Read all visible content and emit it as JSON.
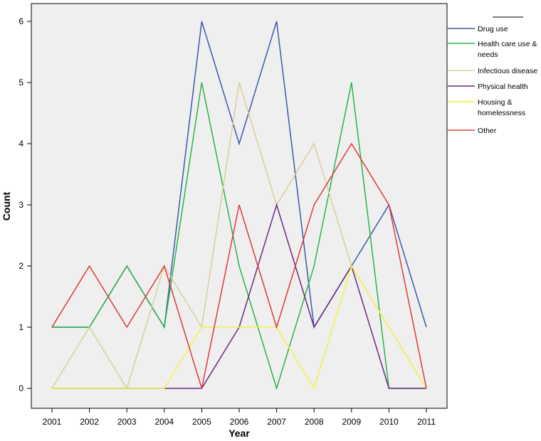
{
  "chart_data": {
    "type": "line",
    "xlabel": "Year",
    "ylabel": "Count",
    "x": [
      "2001",
      "2002",
      "2003",
      "2004",
      "2005",
      "2006",
      "2007",
      "2008",
      "2009",
      "2010",
      "2011"
    ],
    "ylim": [
      0,
      6
    ],
    "yticks": [
      "0",
      "1",
      "2",
      "3",
      "4",
      "5",
      "6"
    ],
    "grid": false,
    "legend_position": "right",
    "background_color": "#efefef",
    "series": [
      {
        "name": "Drug use",
        "color": "#3d5aa8",
        "values": [
          1,
          1,
          2,
          1,
          6,
          4,
          6,
          1,
          2,
          3,
          1
        ]
      },
      {
        "name": "Health care use & needs",
        "color": "#2bb34a",
        "values": [
          1,
          1,
          2,
          1,
          5,
          2,
          0,
          2,
          5,
          0,
          0
        ]
      },
      {
        "name": "Infectious disease",
        "color": "#d6d09a",
        "values": [
          0,
          1,
          0,
          2,
          1,
          5,
          3,
          4,
          2,
          1,
          0
        ]
      },
      {
        "name": "Physical health",
        "color": "#6a2a80",
        "values": [
          0,
          0,
          0,
          0,
          0,
          1,
          3,
          1,
          2,
          0,
          0
        ]
      },
      {
        "name": "Housing & homelessness",
        "color": "#f4f442",
        "values": [
          0,
          0,
          0,
          0,
          1,
          1,
          1,
          0,
          2,
          1,
          0
        ]
      },
      {
        "name": "Other",
        "color": "#e03a3a",
        "values": [
          1,
          2,
          1,
          2,
          0,
          3,
          1,
          3,
          4,
          3,
          0
        ]
      }
    ]
  }
}
